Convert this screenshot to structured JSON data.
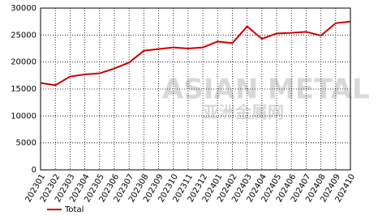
{
  "chart_data": {
    "type": "line",
    "categories": [
      "202301",
      "202302",
      "202303",
      "202304",
      "202305",
      "202306",
      "202307",
      "202308",
      "202309",
      "202310",
      "202311",
      "202312",
      "202401",
      "202402",
      "202403",
      "202404",
      "202405",
      "202406",
      "202407",
      "202408",
      "202409",
      "202410"
    ],
    "series": [
      {
        "name": "Total",
        "color": "#cc0000",
        "values": [
          16100,
          15700,
          17300,
          17700,
          17900,
          18800,
          19900,
          22100,
          22400,
          22700,
          22500,
          22700,
          23800,
          23500,
          26600,
          24300,
          25300,
          25400,
          25600,
          24900,
          27200,
          27500
        ]
      }
    ],
    "ylim": [
      0,
      30000
    ],
    "yticks": [
      0,
      5000,
      10000,
      15000,
      20000,
      25000,
      30000
    ],
    "grid": true,
    "watermark": {
      "text": "ASIAN METAL",
      "subtext": "亚洲金属网"
    }
  }
}
